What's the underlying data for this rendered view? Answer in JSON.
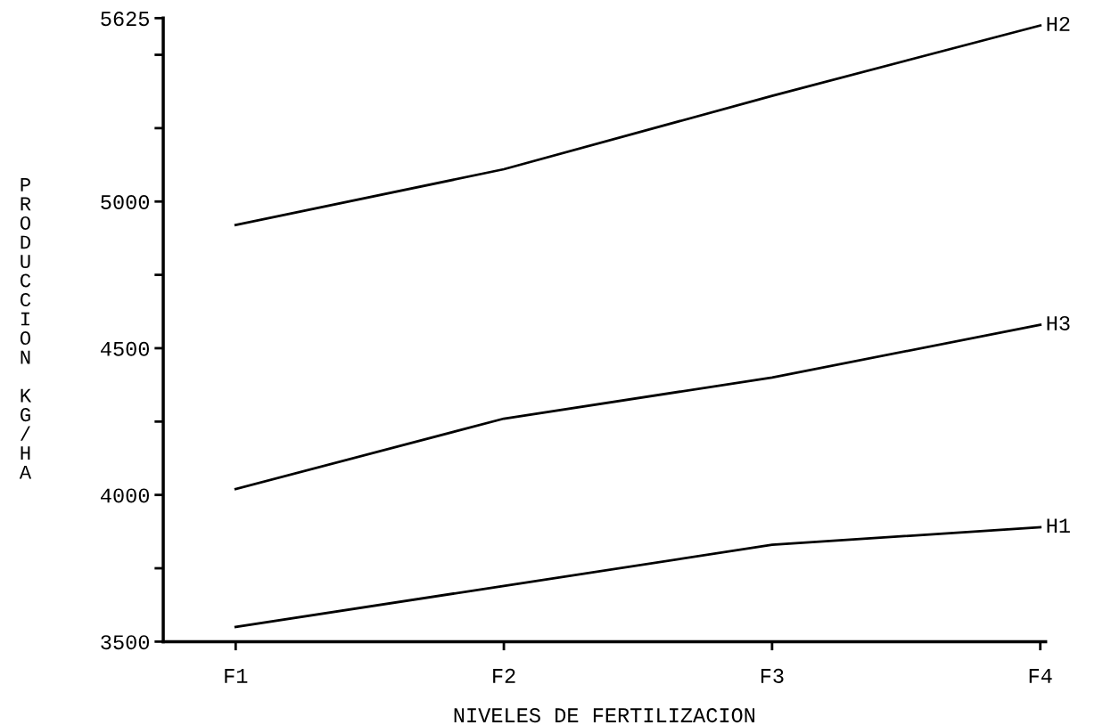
{
  "chart_data": {
    "type": "line",
    "xlabel": "NIVELES DE FERTILIZACION",
    "ylabel": "PRODUCCION KG/HA",
    "categories": [
      "F1",
      "F2",
      "F3",
      "F4"
    ],
    "series": [
      {
        "name": "H2",
        "color": "#000000",
        "values": [
          4920,
          5110,
          5360,
          5600
        ]
      },
      {
        "name": "H3",
        "color": "#000000",
        "values": [
          4020,
          4260,
          4400,
          4580
        ]
      },
      {
        "name": "H1",
        "color": "#000000",
        "values": [
          3550,
          3690,
          3830,
          3890
        ]
      }
    ],
    "ylim": [
      3500,
      5625
    ],
    "yticks": [
      3500,
      {
        "value": 3750,
        "label": null
      },
      4000,
      {
        "value": 4250,
        "label": null
      },
      4500,
      {
        "value": 4750,
        "label": null
      },
      5000,
      {
        "value": 5250,
        "label": null
      },
      {
        "value": 5500,
        "label": null
      },
      5625
    ],
    "grid": false,
    "legend": false,
    "marker": "none",
    "line_style": "solid"
  }
}
